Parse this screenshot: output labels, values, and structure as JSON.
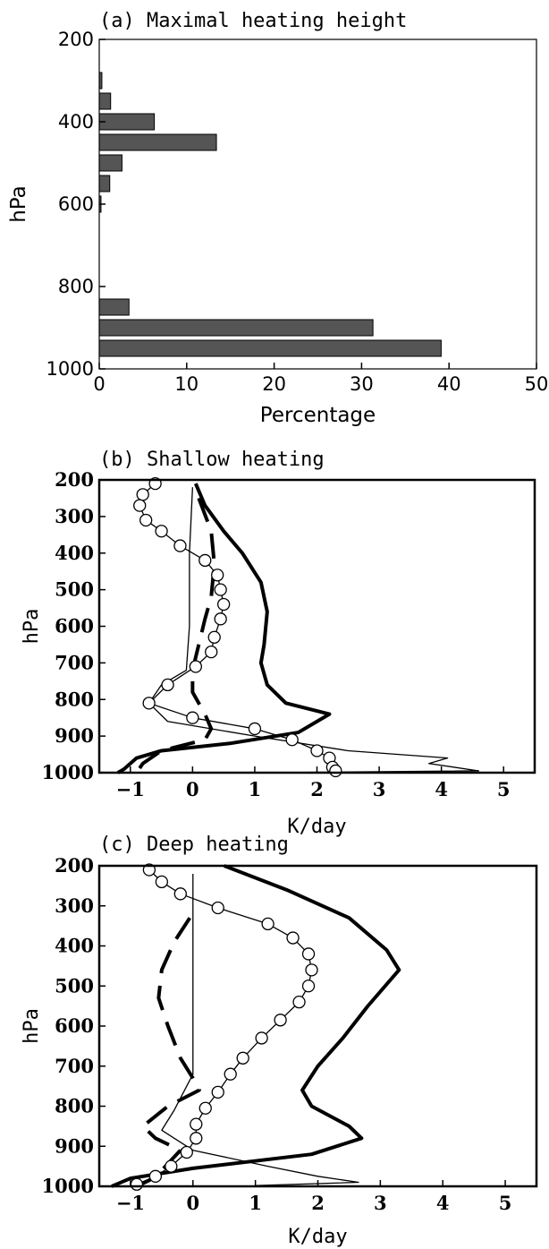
{
  "chart_data": [
    {
      "id": "a",
      "type": "bar",
      "orientation": "horizontal",
      "title": "(a) Maximal heating height",
      "xlabel": "Percentage",
      "ylabel": "hPa",
      "xlim": [
        0,
        50
      ],
      "ylim": [
        1000,
        200
      ],
      "xticks": [
        "0",
        "10",
        "20",
        "30",
        "40",
        "50"
      ],
      "yticks": [
        "200",
        "400",
        "600",
        "800",
        "1000"
      ],
      "bar_color": "#555555",
      "categories": [
        300,
        350,
        400,
        450,
        500,
        550,
        600,
        850,
        900,
        950
      ],
      "values": [
        0.3,
        1.3,
        6.3,
        13.4,
        2.6,
        1.2,
        0.2,
        3.4,
        31.3,
        39.1
      ]
    },
    {
      "id": "b",
      "type": "line",
      "title": "(b) Shallow heating",
      "xlabel": "K/day",
      "ylabel": "hPa",
      "xlim": [
        -1.5,
        5.5
      ],
      "ylim": [
        1000,
        200
      ],
      "xticks": [
        "-1",
        "0",
        "1",
        "2",
        "3",
        "4",
        "5"
      ],
      "yticks": [
        "200",
        "300",
        "400",
        "500",
        "600",
        "700",
        "800",
        "900",
        "1000"
      ],
      "series": [
        {
          "style": "thick-solid",
          "points": [
            [
              0.05,
              210
            ],
            [
              0.2,
              270
            ],
            [
              0.5,
              340
            ],
            [
              0.8,
              400
            ],
            [
              1.1,
              480
            ],
            [
              1.2,
              560
            ],
            [
              1.15,
              650
            ],
            [
              1.1,
              700
            ],
            [
              1.2,
              760
            ],
            [
              1.5,
              810
            ],
            [
              2.2,
              840
            ],
            [
              1.7,
              890
            ],
            [
              0.6,
              920
            ],
            [
              -0.5,
              940
            ],
            [
              -0.9,
              960
            ],
            [
              -1.1,
              990
            ],
            [
              -1.2,
              1000
            ]
          ]
        },
        {
          "style": "thick-dashed",
          "points": [
            [
              0.1,
              250
            ],
            [
              0.3,
              340
            ],
            [
              0.35,
              430
            ],
            [
              0.3,
              520
            ],
            [
              0.2,
              580
            ],
            [
              0.1,
              650
            ],
            [
              0.0,
              720
            ],
            [
              0.0,
              780
            ],
            [
              0.1,
              810
            ],
            [
              0.2,
              840
            ],
            [
              0.3,
              880
            ],
            [
              0.2,
              910
            ],
            [
              -0.5,
              940
            ],
            [
              -0.8,
              975
            ],
            [
              -0.9,
              1000
            ]
          ]
        },
        {
          "style": "thin-solid",
          "points": [
            [
              0.0,
              220
            ],
            [
              -0.05,
              400
            ],
            [
              -0.05,
              600
            ],
            [
              -0.1,
              720
            ],
            [
              -0.5,
              760
            ],
            [
              -0.7,
              810
            ],
            [
              -0.4,
              860
            ],
            [
              1.0,
              900
            ],
            [
              2.5,
              940
            ],
            [
              4.1,
              960
            ],
            [
              3.8,
              975
            ],
            [
              4.6,
              995
            ],
            [
              1.2,
              1000
            ]
          ]
        },
        {
          "style": "thin-solid-circles",
          "points": [
            [
              -0.6,
              210
            ],
            [
              -0.8,
              240
            ],
            [
              -0.85,
              270
            ],
            [
              -0.75,
              310
            ],
            [
              -0.5,
              340
            ],
            [
              -0.2,
              380
            ],
            [
              0.2,
              420
            ],
            [
              0.4,
              460
            ],
            [
              0.45,
              500
            ],
            [
              0.5,
              540
            ],
            [
              0.45,
              580
            ],
            [
              0.35,
              630
            ],
            [
              0.3,
              670
            ],
            [
              0.05,
              710
            ],
            [
              -0.4,
              760
            ],
            [
              -0.7,
              810
            ],
            [
              0.0,
              850
            ],
            [
              1.0,
              880
            ],
            [
              1.6,
              910
            ],
            [
              2.0,
              940
            ],
            [
              2.2,
              960
            ],
            [
              2.25,
              985
            ],
            [
              2.3,
              995
            ]
          ]
        }
      ]
    },
    {
      "id": "c",
      "type": "line",
      "title": "(c) Deep heating",
      "xlabel": "K/day",
      "ylabel": "hPa",
      "xlim": [
        -1.5,
        5.5
      ],
      "ylim": [
        1000,
        200
      ],
      "xticks": [
        "-1",
        "0",
        "1",
        "2",
        "3",
        "4",
        "5"
      ],
      "yticks": [
        "200",
        "300",
        "400",
        "500",
        "600",
        "700",
        "800",
        "900",
        "1000"
      ],
      "series": [
        {
          "style": "thick-solid",
          "points": [
            [
              0.5,
              200
            ],
            [
              1.5,
              260
            ],
            [
              2.5,
              330
            ],
            [
              3.1,
              410
            ],
            [
              3.3,
              460
            ],
            [
              2.8,
              550
            ],
            [
              2.4,
              630
            ],
            [
              2.0,
              700
            ],
            [
              1.75,
              760
            ],
            [
              1.9,
              800
            ],
            [
              2.5,
              850
            ],
            [
              2.7,
              880
            ],
            [
              1.9,
              920
            ],
            [
              0.0,
              955
            ],
            [
              -1.0,
              980
            ],
            [
              -1.3,
              1000
            ]
          ]
        },
        {
          "style": "thick-dashed",
          "points": [
            [
              -0.05,
              330
            ],
            [
              -0.3,
              390
            ],
            [
              -0.5,
              460
            ],
            [
              -0.55,
              530
            ],
            [
              -0.4,
              600
            ],
            [
              -0.2,
              680
            ],
            [
              0.0,
              730
            ],
            [
              0.1,
              760
            ],
            [
              -0.4,
              800
            ],
            [
              -0.8,
              850
            ],
            [
              -0.6,
              880
            ],
            [
              -0.2,
              910
            ],
            [
              -0.5,
              960
            ],
            [
              -0.7,
              985
            ],
            [
              -0.9,
              1000
            ]
          ]
        },
        {
          "style": "thin-solid",
          "points": [
            [
              0.0,
              220
            ],
            [
              0.0,
              400
            ],
            [
              0.0,
              600
            ],
            [
              0.0,
              720
            ],
            [
              -0.3,
              810
            ],
            [
              -0.5,
              860
            ],
            [
              0.0,
              910
            ],
            [
              1.2,
              950
            ],
            [
              2.0,
              975
            ],
            [
              2.65,
              990
            ],
            [
              1.0,
              998
            ]
          ]
        },
        {
          "style": "thin-solid-circles",
          "points": [
            [
              -0.7,
              210
            ],
            [
              -0.5,
              240
            ],
            [
              -0.2,
              270
            ],
            [
              0.4,
              305
            ],
            [
              1.2,
              345
            ],
            [
              1.6,
              380
            ],
            [
              1.85,
              420
            ],
            [
              1.9,
              460
            ],
            [
              1.85,
              500
            ],
            [
              1.7,
              540
            ],
            [
              1.4,
              585
            ],
            [
              1.1,
              630
            ],
            [
              0.8,
              680
            ],
            [
              0.6,
              720
            ],
            [
              0.4,
              765
            ],
            [
              0.2,
              805
            ],
            [
              0.05,
              845
            ],
            [
              0.05,
              880
            ],
            [
              -0.1,
              915
            ],
            [
              -0.35,
              950
            ],
            [
              -0.6,
              975
            ],
            [
              -0.9,
              995
            ]
          ]
        }
      ]
    }
  ]
}
